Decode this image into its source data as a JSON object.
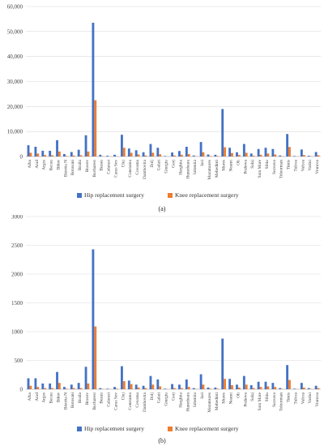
{
  "chart_data": [
    {
      "type": "bar",
      "panel_label": "(a)",
      "ylim": [
        0,
        60000
      ],
      "yticks": [
        "0",
        "10,000",
        "20,000",
        "30,000",
        "40,000",
        "50,000",
        "60,000"
      ],
      "ytick_values": [
        0,
        10000,
        20000,
        30000,
        40000,
        50000,
        60000
      ],
      "categories": [
        "Alba",
        "Arad",
        "Arges",
        "Bacau",
        "Bihor",
        "Bistrita N",
        "Botosani",
        "Braila",
        "Brasov",
        "Bucharest",
        "Buzau",
        "Calarasi",
        "Caras Sev",
        "Cluj",
        "Constanta",
        "Covasna",
        "Dambovita",
        "Dolj",
        "Galati",
        "Giurgiu",
        "Gorj",
        "Harghita",
        "Hunedoara",
        "Ialomita",
        "Iasi",
        "Maramures",
        "Mehedinti",
        "Mures",
        "Neamt",
        "Olt",
        "Prahova",
        "Salaj",
        "Satu Mare",
        "Sibiu",
        "Suceava",
        "Teleorman",
        "Timis",
        "Tulcea",
        "Valcea",
        "Vaslui",
        "Vrancea"
      ],
      "series": [
        {
          "name": "Hip replacement surgery",
          "color": "#4472C4",
          "values": [
            4500,
            3900,
            2300,
            2300,
            6500,
            1000,
            1800,
            2700,
            8500,
            53500,
            700,
            300,
            700,
            8700,
            3200,
            2500,
            1700,
            5000,
            3500,
            200,
            1600,
            2200,
            3900,
            400,
            5800,
            800,
            700,
            19000,
            3500,
            1700,
            5000,
            1200,
            3000,
            3500,
            3000,
            400,
            9000,
            200,
            2800,
            300,
            1800
          ]
        },
        {
          "name": "Knee replacement surgery",
          "color": "#ED7D31",
          "values": [
            1500,
            1200,
            600,
            500,
            2000,
            200,
            400,
            500,
            2000,
            22500,
            100,
            50,
            100,
            3500,
            1500,
            800,
            400,
            1500,
            900,
            50,
            400,
            700,
            1000,
            100,
            1700,
            200,
            200,
            3700,
            1400,
            600,
            1500,
            300,
            700,
            1200,
            800,
            100,
            3800,
            50,
            600,
            100,
            500
          ]
        }
      ]
    },
    {
      "type": "bar",
      "panel_label": "(b)",
      "ylim": [
        0,
        3000
      ],
      "yticks": [
        "0",
        "500",
        "1000",
        "1500",
        "2000",
        "2500",
        "3000"
      ],
      "ytick_values": [
        0,
        500,
        1000,
        1500,
        2000,
        2500,
        3000
      ],
      "categories": [
        "Alba",
        "Arad",
        "Arges",
        "Bacau",
        "Bihor",
        "Bistrita N",
        "Botosani",
        "Braila",
        "Brasov",
        "Bucharest",
        "Buzau",
        "Calarasi",
        "Caras Sev",
        "Cluj",
        "Constanta",
        "Covasna",
        "Dambovita",
        "Dolj",
        "Galati",
        "Giurgiu",
        "Gorj",
        "Harghita",
        "Hunedoara",
        "Ialomita",
        "Iasi",
        "Maramures",
        "Mehedinti",
        "Mures",
        "Neamt",
        "Olt",
        "Prahova",
        "Salaj",
        "Satu Mare",
        "Sibiu",
        "Suceava",
        "Teleorman",
        "Timis",
        "Tulcea",
        "Valcea",
        "Vaslui",
        "Vrancea"
      ],
      "series": [
        {
          "name": "Hip replacement surgery",
          "color": "#4472C4",
          "values": [
            190,
            190,
            100,
            100,
            300,
            40,
            80,
            110,
            390,
            2430,
            20,
            10,
            40,
            400,
            150,
            80,
            60,
            230,
            170,
            10,
            90,
            80,
            170,
            20,
            260,
            30,
            30,
            880,
            180,
            80,
            230,
            70,
            130,
            130,
            110,
            20,
            420,
            10,
            110,
            20,
            60
          ]
        },
        {
          "name": "Knee replacement surgery",
          "color": "#ED7D31",
          "values": [
            60,
            40,
            20,
            20,
            110,
            10,
            20,
            20,
            100,
            1090,
            5,
            3,
            10,
            140,
            90,
            30,
            20,
            80,
            50,
            3,
            20,
            20,
            40,
            5,
            80,
            10,
            10,
            180,
            70,
            30,
            80,
            20,
            40,
            50,
            40,
            5,
            160,
            3,
            30,
            5,
            20
          ]
        }
      ]
    }
  ]
}
